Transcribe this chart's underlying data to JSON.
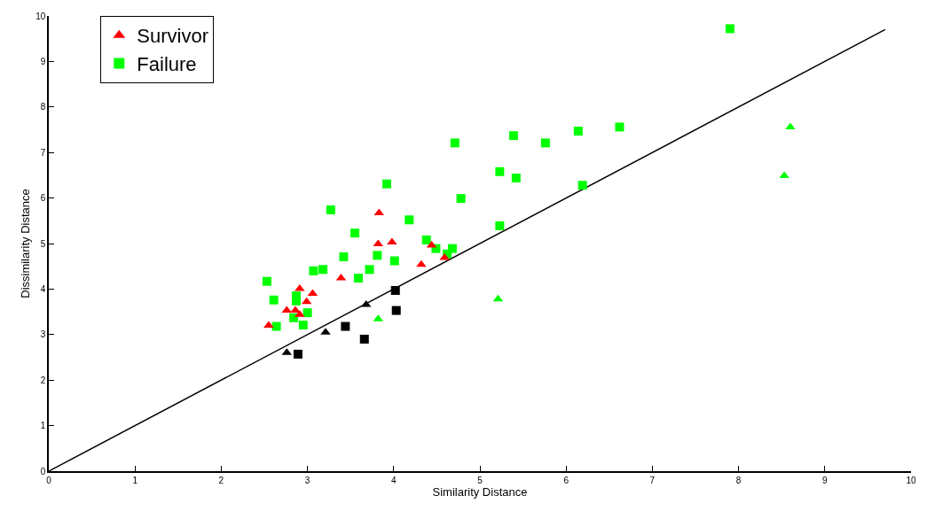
{
  "chart_data": {
    "type": "scatter",
    "xlabel": "Similarity Distance",
    "ylabel": "Dissimilarity Distance",
    "xlim": [
      0,
      10
    ],
    "ylim": [
      0,
      10
    ],
    "xticks": [
      0,
      1,
      2,
      3,
      4,
      5,
      6,
      7,
      8,
      9,
      10
    ],
    "yticks": [
      0,
      1,
      2,
      3,
      4,
      5,
      6,
      7,
      8,
      9,
      10
    ],
    "legend": "top left",
    "series": [
      {
        "name": "Survivor",
        "color": "#ff0000",
        "marker": "triangle",
        "x": [
          2.55,
          2.76,
          2.86,
          2.91,
          2.91,
          2.99,
          3.06,
          3.39,
          3.83,
          3.82,
          3.98,
          4.32,
          4.44,
          4.59
        ],
        "values": [
          3.2,
          3.53,
          3.53,
          3.44,
          4.01,
          3.72,
          3.9,
          4.24,
          5.67,
          4.99,
          5.03,
          4.54,
          4.96,
          4.69
        ]
      },
      {
        "name": "Failure",
        "color": "#00ff00",
        "marker": "square",
        "x": [
          3.92,
          3.27,
          4.18,
          3.55,
          4.38,
          4.49,
          4.68,
          4.62,
          3.42,
          3.81,
          4.01,
          3.07,
          3.18,
          3.72,
          3.59,
          2.53,
          2.61,
          2.87,
          2.87,
          3.0,
          2.84,
          2.95,
          2.64,
          4.78,
          7.9,
          4.71,
          5.39,
          5.76,
          6.14,
          6.62,
          5.23,
          5.42,
          6.19,
          5.23
        ],
        "values": [
          6.31,
          5.74,
          5.52,
          5.23,
          5.08,
          4.89,
          4.89,
          4.77,
          4.71,
          4.74,
          4.62,
          4.4,
          4.43,
          4.43,
          4.24,
          4.17,
          3.76,
          3.85,
          3.74,
          3.48,
          3.37,
          3.21,
          3.18,
          5.99,
          9.72,
          7.21,
          7.37,
          7.21,
          7.47,
          7.56,
          6.58,
          6.44,
          6.28,
          5.39
        ]
      },
      {
        "color": "#00ff00",
        "marker": "triangle",
        "x": [
          8.6,
          8.53,
          3.82,
          5.21
        ],
        "values": [
          7.56,
          6.49,
          3.34,
          3.78
        ]
      },
      {
        "color": "#000000",
        "marker": "triangle",
        "x": [
          2.76,
          3.21,
          3.68
        ],
        "values": [
          2.6,
          3.05,
          3.66
        ]
      },
      {
        "color": "#000000",
        "marker": "square",
        "x": [
          2.89,
          3.44,
          3.66,
          4.02,
          4.03
        ],
        "values": [
          2.57,
          3.18,
          2.9,
          3.97,
          3.53
        ]
      },
      {
        "type": "line",
        "color": "#000000",
        "marker": "none",
        "x": [
          0,
          9.7
        ],
        "values": [
          0,
          9.7
        ]
      }
    ]
  }
}
